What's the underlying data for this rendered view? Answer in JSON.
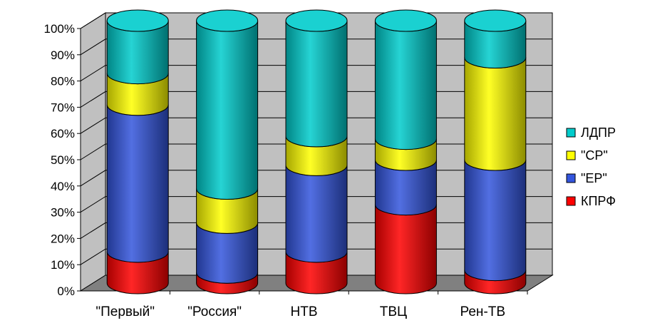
{
  "chart_data": {
    "type": "bar",
    "stacked": true,
    "normalized_percent": true,
    "style": "3d-cylinder",
    "categories": [
      "\"Первый\"",
      "\"Россия\"",
      "НТВ",
      "ТВЦ",
      "Рен-ТВ"
    ],
    "series": [
      {
        "name": "КПРФ",
        "color": "#ff0000",
        "values": [
          12,
          4,
          12,
          30,
          5
        ]
      },
      {
        "name": "\"ЕР\"",
        "color": "#3355dd",
        "values": [
          56,
          19,
          33,
          17,
          42
        ]
      },
      {
        "name": "\"СР\"",
        "color": "#ffff00",
        "values": [
          12,
          13,
          11,
          8,
          39
        ]
      },
      {
        "name": "ЛДПР",
        "color": "#00cccc",
        "values": [
          20,
          64,
          44,
          45,
          14
        ]
      }
    ],
    "ylim": [
      0,
      100
    ],
    "y_ticks": [
      "0%",
      "10%",
      "20%",
      "30%",
      "40%",
      "50%",
      "60%",
      "70%",
      "80%",
      "90%",
      "100%"
    ],
    "grid": true,
    "legend_position": "right",
    "wall_color": "#c0c0c0",
    "floor_color": "#808080"
  }
}
